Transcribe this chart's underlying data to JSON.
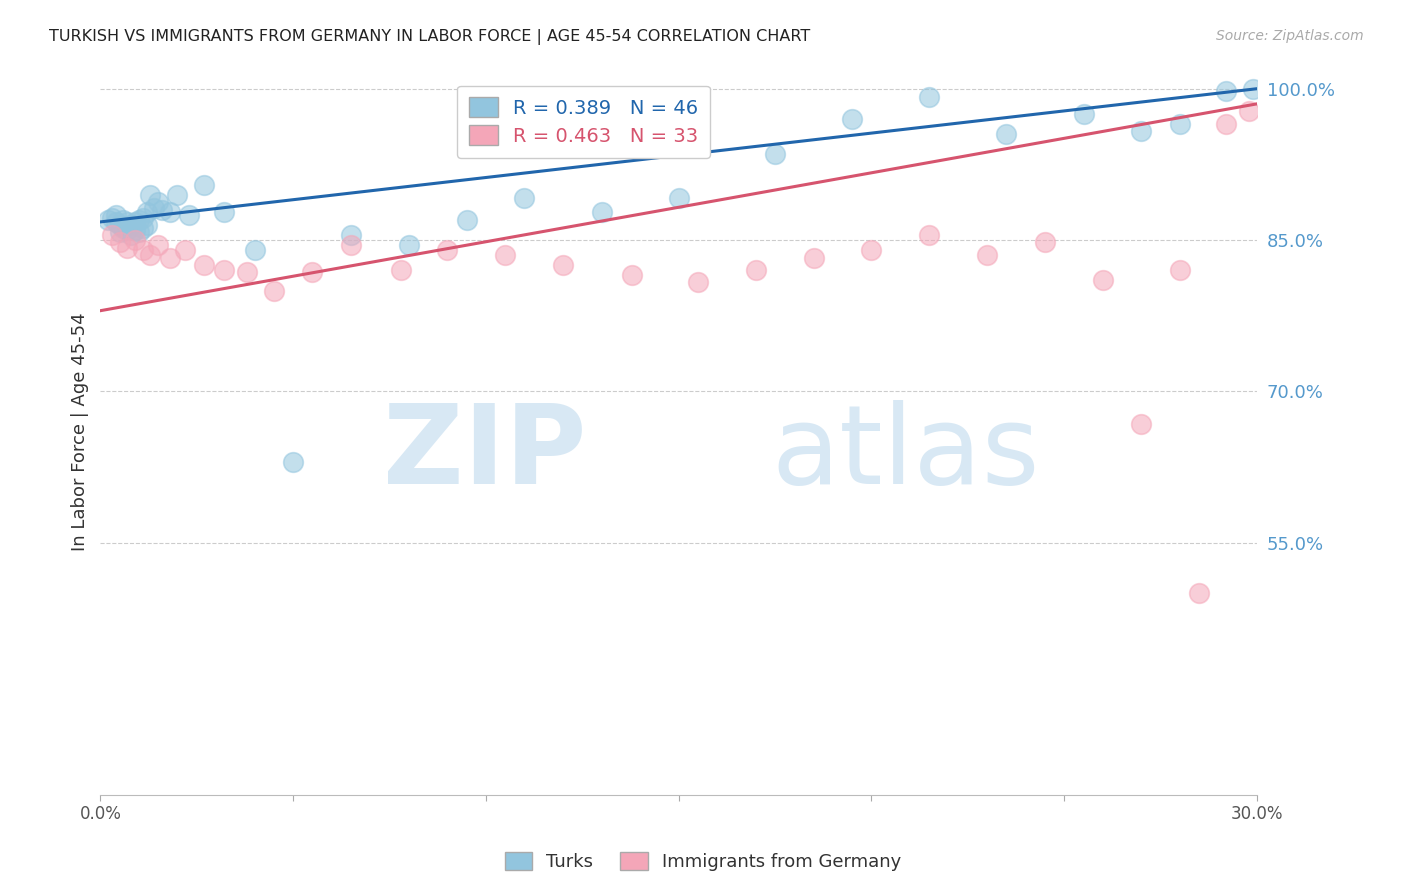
{
  "title": "TURKISH VS IMMIGRANTS FROM GERMANY IN LABOR FORCE | AGE 45-54 CORRELATION CHART",
  "source": "Source: ZipAtlas.com",
  "ylabel": "In Labor Force | Age 45-54",
  "xlim": [
    0.0,
    0.3
  ],
  "ylim": [
    0.3,
    1.02
  ],
  "xticks": [
    0.0,
    0.05,
    0.1,
    0.15,
    0.2,
    0.25,
    0.3
  ],
  "xticklabels": [
    "0.0%",
    "",
    "",
    "",
    "",
    "",
    "30.0%"
  ],
  "yticks_right": [
    0.55,
    0.7,
    0.85,
    1.0
  ],
  "yticklabels_right": [
    "55.0%",
    "70.0%",
    "85.0%",
    "100.0%"
  ],
  "blue_color": "#92c5de",
  "blue_line_color": "#2166ac",
  "pink_color": "#f4a6b8",
  "pink_line_color": "#d6546e",
  "legend_blue_R": "R = 0.389",
  "legend_blue_N": "N = 46",
  "legend_pink_R": "R = 0.463",
  "legend_pink_N": "N = 33",
  "title_color": "#222222",
  "right_tick_color": "#5599cc",
  "grid_color": "#cccccc",
  "blue_x": [
    0.002,
    0.003,
    0.004,
    0.004,
    0.005,
    0.005,
    0.006,
    0.006,
    0.007,
    0.007,
    0.008,
    0.008,
    0.009,
    0.009,
    0.01,
    0.01,
    0.011,
    0.011,
    0.012,
    0.012,
    0.013,
    0.014,
    0.015,
    0.016,
    0.018,
    0.02,
    0.023,
    0.027,
    0.032,
    0.04,
    0.05,
    0.065,
    0.08,
    0.095,
    0.11,
    0.13,
    0.15,
    0.175,
    0.195,
    0.215,
    0.235,
    0.255,
    0.27,
    0.28,
    0.292,
    0.299
  ],
  "blue_y": [
    0.87,
    0.872,
    0.868,
    0.875,
    0.858,
    0.865,
    0.862,
    0.87,
    0.86,
    0.868,
    0.855,
    0.865,
    0.86,
    0.868,
    0.858,
    0.87,
    0.862,
    0.872,
    0.878,
    0.865,
    0.895,
    0.882,
    0.888,
    0.88,
    0.878,
    0.895,
    0.875,
    0.905,
    0.878,
    0.84,
    0.63,
    0.855,
    0.845,
    0.87,
    0.892,
    0.878,
    0.892,
    0.935,
    0.97,
    0.992,
    0.955,
    0.975,
    0.958,
    0.965,
    0.998,
    1.0
  ],
  "pink_x": [
    0.003,
    0.005,
    0.007,
    0.009,
    0.011,
    0.013,
    0.015,
    0.018,
    0.022,
    0.027,
    0.032,
    0.038,
    0.045,
    0.055,
    0.065,
    0.078,
    0.09,
    0.105,
    0.12,
    0.138,
    0.155,
    0.17,
    0.185,
    0.2,
    0.215,
    0.23,
    0.245,
    0.26,
    0.27,
    0.28,
    0.285,
    0.292,
    0.298
  ],
  "pink_y": [
    0.855,
    0.848,
    0.842,
    0.85,
    0.84,
    0.835,
    0.845,
    0.832,
    0.84,
    0.825,
    0.82,
    0.818,
    0.8,
    0.818,
    0.845,
    0.82,
    0.84,
    0.835,
    0.825,
    0.815,
    0.808,
    0.82,
    0.832,
    0.84,
    0.855,
    0.835,
    0.848,
    0.81,
    0.668,
    0.82,
    0.5,
    0.965,
    0.978
  ]
}
